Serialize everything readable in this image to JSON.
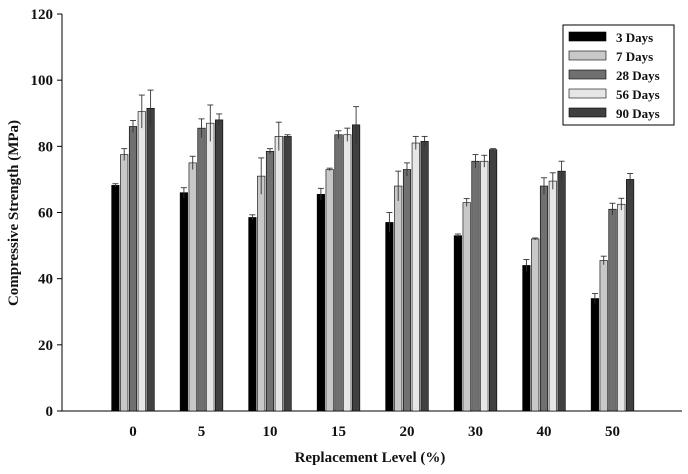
{
  "chart_data": {
    "type": "bar",
    "title": "",
    "xlabel": "Replacement Level (%)",
    "ylabel": "Compressive Strength (MPa)",
    "ylim": [
      0,
      120
    ],
    "yticks": [
      0,
      20,
      40,
      60,
      80,
      100,
      120
    ],
    "grid": false,
    "legend_position": "top-right",
    "categories": [
      "0",
      "5",
      "10",
      "15",
      "20",
      "30",
      "40",
      "50"
    ],
    "series": [
      {
        "name": "3 Days",
        "color": "#000000",
        "values": [
          68.2,
          66.0,
          58.5,
          65.5,
          57.0,
          53.0,
          44.0,
          34.0
        ],
        "errors": [
          0.5,
          1.5,
          0.8,
          1.8,
          3.0,
          0.5,
          1.8,
          1.5
        ]
      },
      {
        "name": "7 Days",
        "color": "#c8c8c8",
        "values": [
          77.5,
          75.0,
          71.0,
          73.0,
          68.0,
          63.0,
          52.0,
          45.5
        ],
        "errors": [
          1.8,
          2.0,
          5.5,
          0.4,
          4.5,
          1.2,
          0.3,
          1.3
        ]
      },
      {
        "name": "28 Days",
        "color": "#707070",
        "values": [
          86.0,
          85.5,
          78.5,
          83.5,
          73.0,
          75.5,
          68.0,
          61.0
        ],
        "errors": [
          1.8,
          2.8,
          0.8,
          1.2,
          2.0,
          2.0,
          2.5,
          1.8
        ]
      },
      {
        "name": "56 Days",
        "color": "#e6e6e6",
        "values": [
          90.5,
          87.0,
          83.0,
          83.5,
          81.0,
          75.5,
          69.5,
          62.5
        ],
        "errors": [
          5.0,
          5.5,
          4.3,
          2.0,
          2.0,
          1.8,
          2.5,
          1.8
        ]
      },
      {
        "name": "90 Days",
        "color": "#404040",
        "values": [
          91.5,
          88.0,
          83.0,
          86.5,
          81.5,
          79.0,
          72.5,
          70.0
        ],
        "errors": [
          5.5,
          1.8,
          0.5,
          5.5,
          1.5,
          0.3,
          3.0,
          1.8
        ]
      }
    ]
  }
}
